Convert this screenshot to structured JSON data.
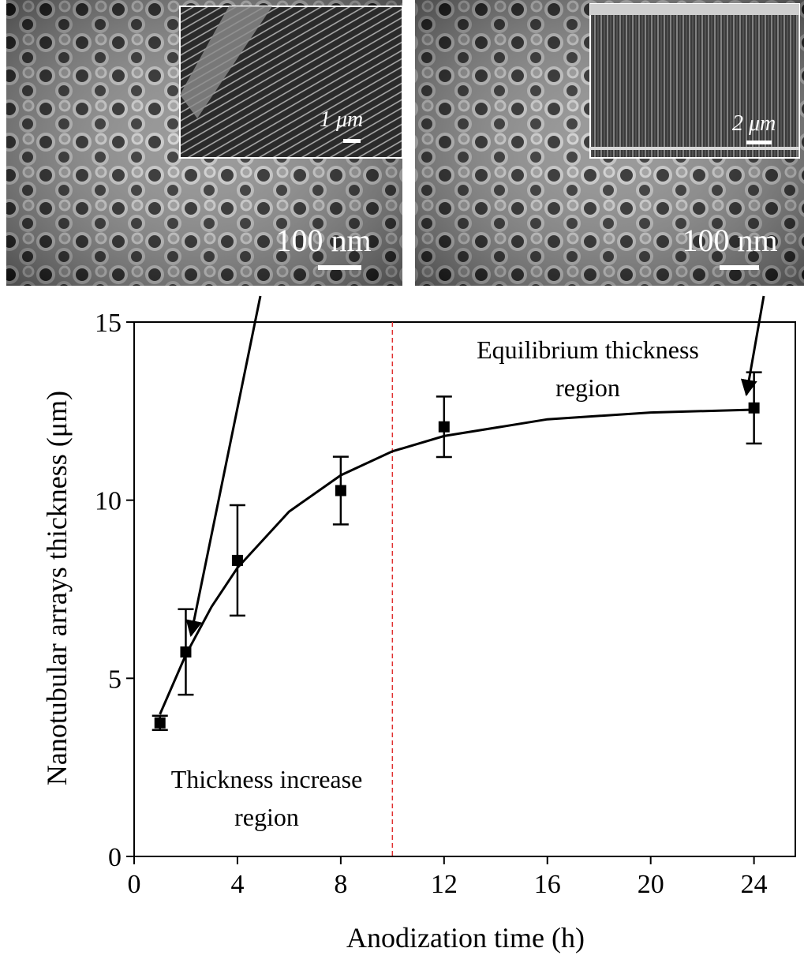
{
  "chart_data": {
    "type": "scatter",
    "x_label": "Anodization time (h)",
    "y_label": "Nanotubular arrays thickness (μm)",
    "x": [
      1,
      2,
      4,
      8,
      12,
      24
    ],
    "values": [
      3.75,
      5.74,
      8.31,
      10.27,
      12.06,
      12.59
    ],
    "errors": [
      0.2,
      1.2,
      1.55,
      0.95,
      0.85,
      1.0
    ],
    "color": "#000000",
    "fit": {
      "x": [
        1,
        2,
        3,
        4,
        6,
        8,
        10,
        12,
        16,
        20,
        24
      ],
      "y": [
        3.99,
        5.66,
        7.01,
        8.1,
        9.68,
        10.7,
        11.37,
        11.8,
        12.27,
        12.46,
        12.54
      ]
    },
    "divider_x": 10,
    "divider_color": "#e03030",
    "xlim": [
      0,
      25.6
    ],
    "xticks": [
      0,
      4,
      8,
      12,
      16,
      20,
      24
    ],
    "ylim": [
      0,
      15
    ],
    "yticks": [
      0,
      5,
      10,
      15
    ],
    "annotations": [
      {
        "lines": [
          "Equilibrium thickness",
          "region"
        ]
      },
      {
        "lines": [
          "Thickness increase",
          "region"
        ]
      }
    ]
  },
  "micrographs": [
    {
      "scale_label": "100 nm",
      "inset_scale_label": "1 μm"
    },
    {
      "scale_label": "100 nm",
      "inset_scale_label": "2 μm"
    }
  ]
}
